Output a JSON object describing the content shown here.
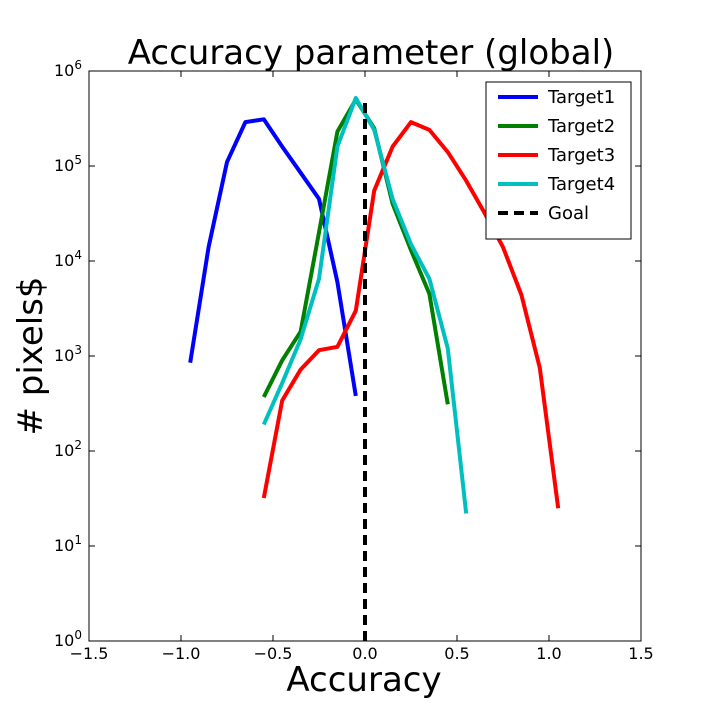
{
  "chart_data": {
    "type": "line",
    "title": "Accuracy parameter (global)",
    "xlabel": "Accuracy",
    "ylabel": "# pixels$",
    "xlim": [
      -1.5,
      1.5
    ],
    "ylim": [
      1,
      1000000
    ],
    "yscale": "log",
    "grid": false,
    "legend_position": "top-right",
    "x_ticks": [
      {
        "value": -1.5,
        "label": "−1.5"
      },
      {
        "value": -1.0,
        "label": "−1.0"
      },
      {
        "value": -0.5,
        "label": "−0.5"
      },
      {
        "value": 0.0,
        "label": "0.0"
      },
      {
        "value": 0.5,
        "label": "0.5"
      },
      {
        "value": 1.0,
        "label": "1.0"
      },
      {
        "value": 1.5,
        "label": "1.5"
      }
    ],
    "y_ticks": [
      {
        "value": 1,
        "base": "10",
        "exp": "0"
      },
      {
        "value": 10,
        "base": "10",
        "exp": "1"
      },
      {
        "value": 100,
        "base": "10",
        "exp": "2"
      },
      {
        "value": 1000,
        "base": "10",
        "exp": "3"
      },
      {
        "value": 10000,
        "base": "10",
        "exp": "4"
      },
      {
        "value": 100000,
        "base": "10",
        "exp": "5"
      },
      {
        "value": 1000000,
        "base": "10",
        "exp": "6"
      }
    ],
    "series": [
      {
        "name": "Target1",
        "color": "#0000ff",
        "style": "solid",
        "x": [
          -0.95,
          -0.85,
          -0.75,
          -0.65,
          -0.55,
          -0.45,
          -0.35,
          -0.25,
          -0.15,
          -0.05
        ],
        "y": [
          850,
          14000,
          110000,
          290000,
          310000,
          160000,
          85000,
          45000,
          6000,
          380
        ]
      },
      {
        "name": "Target2",
        "color": "#008000",
        "style": "solid",
        "x": [
          -0.55,
          -0.45,
          -0.35,
          -0.25,
          -0.15,
          -0.05,
          0.05,
          0.15,
          0.25,
          0.35,
          0.45
        ],
        "y": [
          370,
          900,
          1800,
          20000,
          230000,
          500000,
          250000,
          40000,
          13000,
          4500,
          310
        ]
      },
      {
        "name": "Target3",
        "color": "#ff0000",
        "style": "solid",
        "x": [
          -0.55,
          -0.45,
          -0.35,
          -0.25,
          -0.15,
          -0.05,
          0.05,
          0.15,
          0.25,
          0.35,
          0.45,
          0.55,
          0.65,
          0.75,
          0.85,
          0.95,
          1.05
        ],
        "y": [
          32,
          340,
          720,
          1150,
          1250,
          3000,
          55000,
          160000,
          290000,
          240000,
          140000,
          70000,
          32000,
          14000,
          4400,
          750,
          25
        ]
      },
      {
        "name": "Target4",
        "color": "#00bfbf",
        "style": "solid",
        "x": [
          -0.55,
          -0.45,
          -0.35,
          -0.25,
          -0.15,
          -0.05,
          0.05,
          0.15,
          0.25,
          0.35,
          0.45,
          0.55
        ],
        "y": [
          190,
          520,
          1500,
          6500,
          160000,
          520000,
          240000,
          45000,
          15000,
          6500,
          1200,
          22
        ]
      },
      {
        "name": "Goal",
        "color": "#000000",
        "style": "dashed",
        "x": [
          0,
          0
        ],
        "y": [
          1,
          520000
        ]
      }
    ]
  }
}
